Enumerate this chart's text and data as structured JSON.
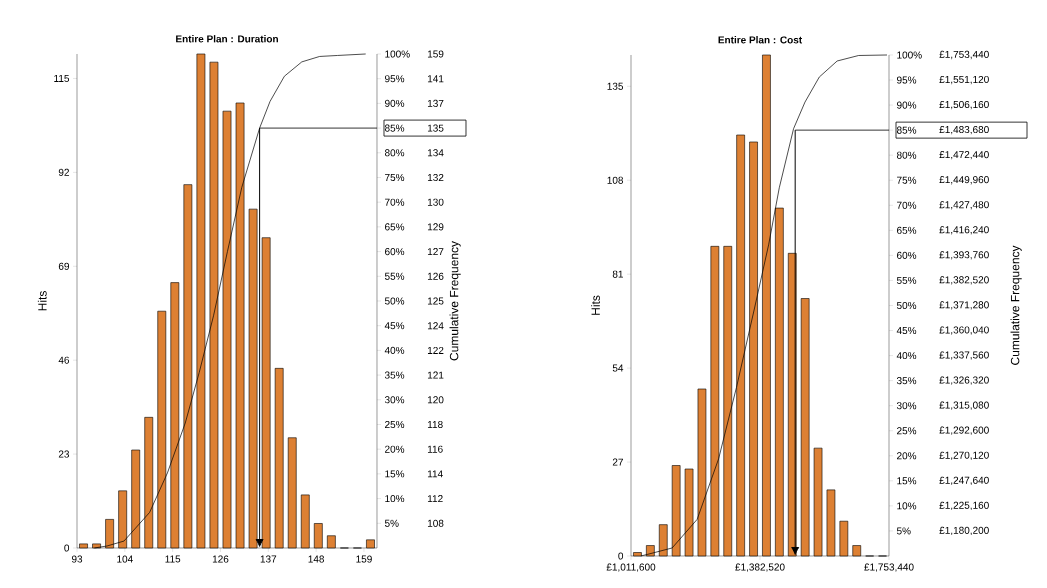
{
  "chart_data": [
    {
      "type": "histogram",
      "title": "Entire Plan : Duration",
      "ylabel": "Hits",
      "y2label": "Cumulative Frequency",
      "xlim": [
        93,
        162
      ],
      "xticks": [
        93,
        104,
        115,
        126,
        137,
        148,
        159
      ],
      "ylim": [
        0,
        121
      ],
      "yticks": [
        0,
        23,
        46,
        69,
        92,
        115
      ],
      "y2lim": [
        0,
        100
      ],
      "y2ticks": [
        {
          "value": 5,
          "label": "5%"
        },
        {
          "value": 10,
          "label": "10%"
        },
        {
          "value": 15,
          "label": "15%"
        },
        {
          "value": 20,
          "label": "20%"
        },
        {
          "value": 25,
          "label": "25%"
        },
        {
          "value": 30,
          "label": "30%"
        },
        {
          "value": 35,
          "label": "35%"
        },
        {
          "value": 40,
          "label": "40%"
        },
        {
          "value": 45,
          "label": "45%"
        },
        {
          "value": 50,
          "label": "50%"
        },
        {
          "value": 55,
          "label": "55%"
        },
        {
          "value": 60,
          "label": "60%"
        },
        {
          "value": 65,
          "label": "65%"
        },
        {
          "value": 70,
          "label": "70%"
        },
        {
          "value": 75,
          "label": "75%"
        },
        {
          "value": 80,
          "label": "80%"
        },
        {
          "value": 85,
          "label": "85%"
        },
        {
          "value": 90,
          "label": "90%"
        },
        {
          "value": 95,
          "label": "95%"
        },
        {
          "value": 100,
          "label": "100%"
        }
      ],
      "annotations": [
        "108",
        "112",
        "114",
        "116",
        "118",
        "120",
        "121",
        "122",
        "124",
        "125",
        "126",
        "127",
        "129",
        "130",
        "132",
        "134",
        "135",
        "137",
        "141",
        "159"
      ],
      "series": [
        {
          "color": "#dd8033",
          "bins": [
            93,
            96,
            99,
            102,
            105,
            108,
            111,
            114,
            117,
            120,
            123,
            126,
            129,
            132,
            135,
            138,
            141,
            144,
            147,
            150,
            153,
            156,
            159,
            162
          ],
          "values": [
            1,
            1,
            7,
            14,
            24,
            32,
            58,
            65,
            89,
            121,
            119,
            107,
            109,
            83,
            76,
            44,
            27,
            13,
            6,
            3,
            0,
            0,
            2
          ]
        },
        {
          "type": "line",
          "axis": "y2",
          "color": "#000000",
          "x": [
            97,
            99.9,
            103.8,
            109.7,
            113.8,
            117.9,
            121.1,
            124.4,
            127.6,
            130.9,
            135,
            137.4,
            140.7,
            144.7,
            148.8,
            152.9,
            159.4
          ],
          "values": [
            0,
            0.4,
            1.4,
            7.2,
            15.2,
            25.3,
            35.5,
            47,
            60,
            73,
            85,
            90.4,
            95.5,
            98.4,
            99.5,
            99.7,
            100
          ]
        }
      ],
      "ref_lines": [
        {
          "axis": "x",
          "value": 135,
          "color": "#000000"
        },
        {
          "axis": "y2",
          "value": 85,
          "color": "#000000"
        }
      ]
    },
    {
      "type": "histogram",
      "title": "Entire Plan : Cost",
      "ylabel": "Hits",
      "y2label": "Cumulative Frequency",
      "xlim": [
        1011600,
        1753440
      ],
      "xticks": [
        {
          "value": 1011600,
          "label": "£1,011,600"
        },
        {
          "value": 1382520,
          "label": "£1,382,520"
        },
        {
          "value": 1753440,
          "label": "£1,753,440"
        }
      ],
      "ylim": [
        0,
        144
      ],
      "yticks": [
        0,
        27,
        54,
        81,
        108,
        135
      ],
      "y2lim": [
        0,
        100
      ],
      "y2ticks": [
        {
          "value": 5,
          "label": "5%"
        },
        {
          "value": 10,
          "label": "10%"
        },
        {
          "value": 15,
          "label": "15%"
        },
        {
          "value": 20,
          "label": "20%"
        },
        {
          "value": 25,
          "label": "25%"
        },
        {
          "value": 30,
          "label": "30%"
        },
        {
          "value": 35,
          "label": "35%"
        },
        {
          "value": 40,
          "label": "40%"
        },
        {
          "value": 45,
          "label": "45%"
        },
        {
          "value": 50,
          "label": "50%"
        },
        {
          "value": 55,
          "label": "55%"
        },
        {
          "value": 60,
          "label": "60%"
        },
        {
          "value": 65,
          "label": "65%"
        },
        {
          "value": 70,
          "label": "70%"
        },
        {
          "value": 75,
          "label": "75%"
        },
        {
          "value": 80,
          "label": "80%"
        },
        {
          "value": 85,
          "label": "85%"
        },
        {
          "value": 90,
          "label": "90%"
        },
        {
          "value": 95,
          "label": "95%"
        },
        {
          "value": 100,
          "label": "100%"
        }
      ],
      "annotations": [
        "£1,180,200",
        "£1,225,160",
        "£1,247,640",
        "£1,270,120",
        "£1,292,600",
        "£1,315,080",
        "£1,326,320",
        "£1,337,560",
        "£1,360,040",
        "£1,371,280",
        "£1,382,520",
        "£1,393,760",
        "£1,416,240",
        "£1,427,480",
        "£1,449,960",
        "£1,472,440",
        "£1,483,680",
        "£1,506,160",
        "£1,551,120",
        "£1,753,440"
      ],
      "series": [
        {
          "color": "#dd8033",
          "bins": [
            1011600,
            1048692,
            1085784,
            1122876,
            1159968,
            1197060,
            1234152,
            1271244,
            1308336,
            1345428,
            1382520,
            1419612,
            1456704,
            1493796,
            1530888,
            1567980,
            1605072,
            1642164,
            1679256,
            1716348,
            1753440
          ],
          "values": [
            1,
            3,
            9,
            26,
            25,
            48,
            89,
            89,
            121,
            119,
            144,
            100,
            87,
            74,
            31,
            19,
            10,
            3,
            0,
            0
          ]
        },
        {
          "type": "line",
          "axis": "y2",
          "color": "#000000",
          "x": [
            1040000,
            1057900,
            1129800,
            1201700,
            1263500,
            1314700,
            1366200,
            1407300,
            1438000,
            1479100,
            1511900,
            1553000,
            1604300,
            1666100,
            1747700
          ],
          "values": [
            0,
            0.3,
            1.6,
            7.3,
            19.4,
            33.6,
            49.3,
            62.1,
            73.5,
            85.3,
            90.6,
            95.6,
            98.8,
            99.9,
            100
          ]
        }
      ],
      "ref_lines": [
        {
          "axis": "x",
          "value": 1483680,
          "color": "#000000"
        },
        {
          "axis": "y2",
          "value": 85,
          "color": "#000000"
        }
      ]
    }
  ]
}
